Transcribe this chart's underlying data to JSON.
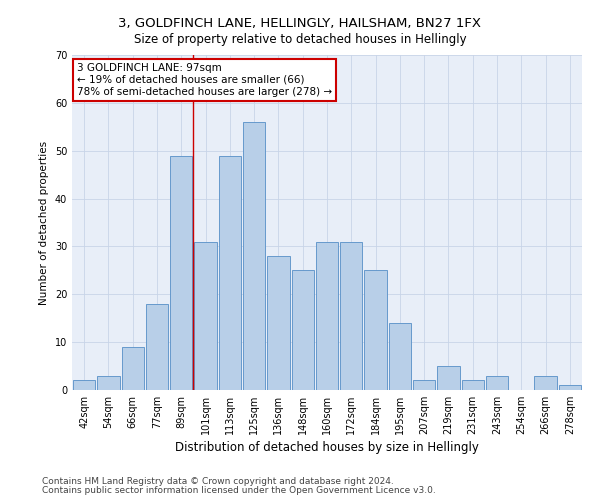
{
  "title1": "3, GOLDFINCH LANE, HELLINGLY, HAILSHAM, BN27 1FX",
  "title2": "Size of property relative to detached houses in Hellingly",
  "xlabel": "Distribution of detached houses by size in Hellingly",
  "ylabel": "Number of detached properties",
  "footer1": "Contains HM Land Registry data © Crown copyright and database right 2024.",
  "footer2": "Contains public sector information licensed under the Open Government Licence v3.0.",
  "annotation_line1": "3 GOLDFINCH LANE: 97sqm",
  "annotation_line2": "← 19% of detached houses are smaller (66)",
  "annotation_line3": "78% of semi-detached houses are larger (278) →",
  "bar_labels": [
    "42sqm",
    "54sqm",
    "66sqm",
    "77sqm",
    "89sqm",
    "101sqm",
    "113sqm",
    "125sqm",
    "136sqm",
    "148sqm",
    "160sqm",
    "172sqm",
    "184sqm",
    "195sqm",
    "207sqm",
    "219sqm",
    "231sqm",
    "243sqm",
    "254sqm",
    "266sqm",
    "278sqm"
  ],
  "bar_values": [
    2,
    3,
    9,
    18,
    49,
    31,
    49,
    56,
    28,
    25,
    31,
    31,
    25,
    14,
    2,
    5,
    2,
    3,
    0,
    3,
    1
  ],
  "bar_color": "#b8cfe8",
  "bar_edge_color": "#6699cc",
  "vline_color": "#cc0000",
  "vline_x_index": 5,
  "ylim": [
    0,
    70
  ],
  "yticks": [
    0,
    10,
    20,
    30,
    40,
    50,
    60,
    70
  ],
  "grid_color": "#c8d4e8",
  "background_color": "#e8eef8",
  "annotation_box_facecolor": "#ffffff",
  "annotation_box_edgecolor": "#cc0000",
  "title1_fontsize": 9.5,
  "title2_fontsize": 8.5,
  "xlabel_fontsize": 8.5,
  "ylabel_fontsize": 7.5,
  "tick_fontsize": 7,
  "annotation_fontsize": 7.5,
  "footer_fontsize": 6.5
}
